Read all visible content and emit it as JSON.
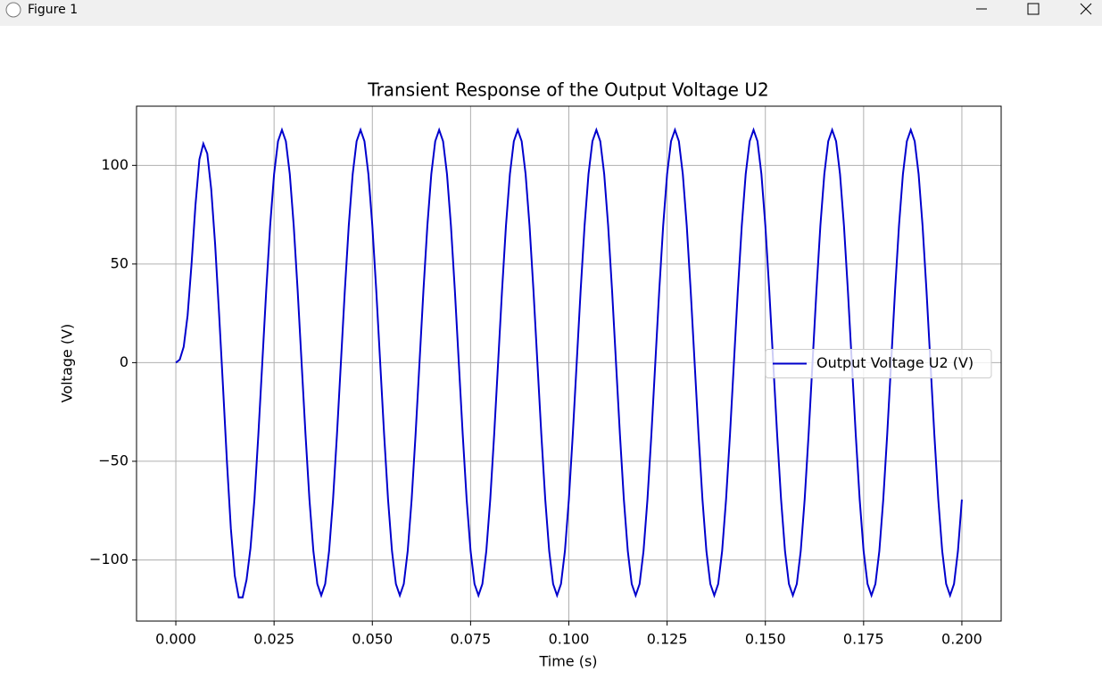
{
  "window": {
    "title": "Figure 1"
  },
  "chart_data": {
    "type": "line",
    "title": "Transient Response of the Output Voltage U2",
    "xlabel": "Time (s)",
    "ylabel": "Voltage (V)",
    "x": [
      0,
      0.001,
      0.002,
      0.003,
      0.004,
      0.005,
      0.006,
      0.007,
      0.008,
      0.009,
      0.01,
      0.011,
      0.012,
      0.013,
      0.014,
      0.015,
      0.016,
      0.017,
      0.018,
      0.019,
      0.02,
      0.021,
      0.022,
      0.023,
      0.024,
      0.025,
      0.026,
      0.027,
      0.028,
      0.029,
      0.03,
      0.031,
      0.032,
      0.033,
      0.034,
      0.035,
      0.036,
      0.037,
      0.038,
      0.039,
      0.04,
      0.041,
      0.042,
      0.043,
      0.044,
      0.045,
      0.046,
      0.047,
      0.048,
      0.049,
      0.05,
      0.051,
      0.052,
      0.053,
      0.054,
      0.055,
      0.056,
      0.057,
      0.058,
      0.059,
      0.06,
      0.061,
      0.062,
      0.063,
      0.064,
      0.065,
      0.066,
      0.067,
      0.068,
      0.069,
      0.07,
      0.071,
      0.072,
      0.073,
      0.074,
      0.075,
      0.076,
      0.077,
      0.078,
      0.079,
      0.08,
      0.081,
      0.082,
      0.083,
      0.084,
      0.085,
      0.086,
      0.087,
      0.088,
      0.089,
      0.09,
      0.091,
      0.092,
      0.093,
      0.094,
      0.095,
      0.096,
      0.097,
      0.098,
      0.099,
      0.1,
      0.101,
      0.102,
      0.103,
      0.104,
      0.105,
      0.106,
      0.107,
      0.108,
      0.109,
      0.11,
      0.111,
      0.112,
      0.113,
      0.114,
      0.115,
      0.116,
      0.117,
      0.118,
      0.119,
      0.12,
      0.121,
      0.122,
      0.123,
      0.124,
      0.125,
      0.126,
      0.127,
      0.128,
      0.129,
      0.13,
      0.131,
      0.132,
      0.133,
      0.134,
      0.135,
      0.136,
      0.137,
      0.138,
      0.139,
      0.14,
      0.141,
      0.142,
      0.143,
      0.144,
      0.145,
      0.146,
      0.147,
      0.148,
      0.149,
      0.15,
      0.151,
      0.152,
      0.153,
      0.154,
      0.155,
      0.156,
      0.157,
      0.158,
      0.159,
      0.16,
      0.161,
      0.162,
      0.163,
      0.164,
      0.165,
      0.166,
      0.167,
      0.168,
      0.169,
      0.17,
      0.171,
      0.172,
      0.173,
      0.174,
      0.175,
      0.176,
      0.177,
      0.178,
      0.179,
      0.18,
      0.181,
      0.182,
      0.183,
      0.184,
      0.185,
      0.186,
      0.187,
      0.188,
      0.189,
      0.19,
      0.191,
      0.192,
      0.193,
      0.194,
      0.195,
      0.196,
      0.197,
      0.198,
      0.199,
      0.2
    ],
    "series": [
      {
        "name": "Output Voltage U2 (V)",
        "color": "#0000cd",
        "values": [
          0,
          1.5,
          8,
          24,
          50,
          80,
          103,
          111,
          106,
          88,
          60,
          25,
          -12,
          -50,
          -84,
          -108,
          -119,
          -119,
          -110,
          -94,
          -69.4,
          -36.5,
          0,
          36.5,
          69.4,
          95.5,
          112.2,
          118,
          112.2,
          95.5,
          69.4,
          36.5,
          0,
          -36.5,
          -69.4,
          -95.5,
          -112.2,
          -118,
          -112.2,
          -95.5,
          -69.4,
          -36.5,
          0,
          36.5,
          69.4,
          95.5,
          112.2,
          118,
          112.2,
          95.5,
          69.4,
          36.5,
          0,
          -36.5,
          -69.4,
          -95.5,
          -112.2,
          -118,
          -112.2,
          -95.5,
          -69.4,
          -36.5,
          0,
          36.5,
          69.4,
          95.5,
          112.2,
          118,
          112.2,
          95.5,
          69.4,
          36.5,
          0,
          -36.5,
          -69.4,
          -95.5,
          -112.2,
          -118,
          -112.2,
          -95.5,
          -69.4,
          -36.5,
          0,
          36.5,
          69.4,
          95.5,
          112.2,
          118,
          112.2,
          95.5,
          69.4,
          36.5,
          0,
          -36.5,
          -69.4,
          -95.5,
          -112.2,
          -118,
          -112.2,
          -95.5,
          -69.4,
          -36.5,
          0,
          36.5,
          69.4,
          95.5,
          112.2,
          118,
          112.2,
          95.5,
          69.4,
          36.5,
          0,
          -36.5,
          -69.4,
          -95.5,
          -112.2,
          -118,
          -112.2,
          -95.5,
          -69.4,
          -36.5,
          0,
          36.5,
          69.4,
          95.5,
          112.2,
          118,
          112.2,
          95.5,
          69.4,
          36.5,
          0,
          -36.5,
          -69.4,
          -95.5,
          -112.2,
          -118,
          -112.2,
          -95.5,
          -69.4,
          -36.5,
          0,
          36.5,
          69.4,
          95.5,
          112.2,
          118,
          112.2,
          95.5,
          69.4,
          36.5,
          0,
          -36.5,
          -69.4,
          -95.5,
          -112.2,
          -118,
          -112.2,
          -95.5,
          -69.4,
          -36.5,
          0,
          36.5,
          69.4,
          95.5,
          112.2,
          118,
          112.2,
          95.5,
          69.4,
          36.5,
          0,
          -36.5,
          -69.4,
          -95.5,
          -112.2,
          -118,
          -112.2,
          -95.5,
          -69.4,
          -36.5,
          0,
          36.5,
          69.4,
          95.5,
          112.2,
          118,
          112.2,
          95.5,
          69.4,
          36.5,
          0,
          -36.5,
          -69.4,
          -95.5,
          -112.2,
          -118,
          -112.2,
          -95.5,
          -69.4
        ]
      }
    ],
    "xlim": [
      -0.01,
      0.21
    ],
    "ylim": [
      -131,
      130
    ],
    "xticks": [
      {
        "value": 0,
        "label": "0.000"
      },
      {
        "value": 0.025,
        "label": "0.025"
      },
      {
        "value": 0.05,
        "label": "0.050"
      },
      {
        "value": 0.075,
        "label": "0.075"
      },
      {
        "value": 0.1,
        "label": "0.100"
      },
      {
        "value": 0.125,
        "label": "0.125"
      },
      {
        "value": 0.15,
        "label": "0.150"
      },
      {
        "value": 0.175,
        "label": "0.175"
      },
      {
        "value": 0.2,
        "label": "0.200"
      }
    ],
    "yticks": [
      {
        "value": -100,
        "label": "−100"
      },
      {
        "value": -50,
        "label": "−50"
      },
      0,
      50,
      100
    ],
    "grid": true,
    "legend": "center right"
  }
}
